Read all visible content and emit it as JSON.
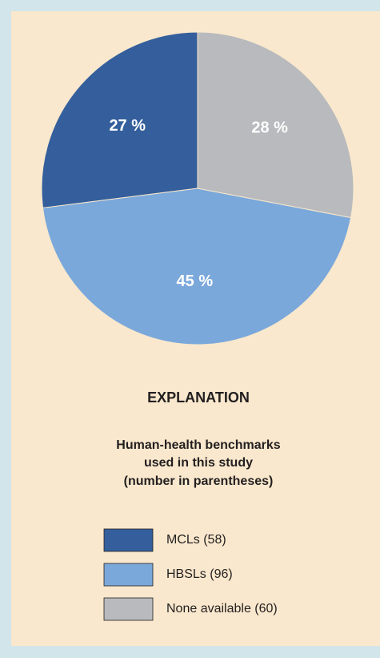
{
  "chart_data": {
    "type": "pie",
    "direction": "counterclockwise",
    "categories": [
      "MCLs (58)",
      "HBSLs (96)",
      "None available (60)"
    ],
    "values": [
      27,
      45,
      28
    ],
    "value_labels": [
      "27 %",
      "45 %",
      "28 %"
    ],
    "colors": [
      "#345f9c",
      "#7ba8da",
      "#b8babd"
    ],
    "legend_title": "EXPLANATION",
    "legend_subtitle": [
      "Human-health benchmarks",
      "used in this study",
      "(number in parentheses)"
    ]
  }
}
